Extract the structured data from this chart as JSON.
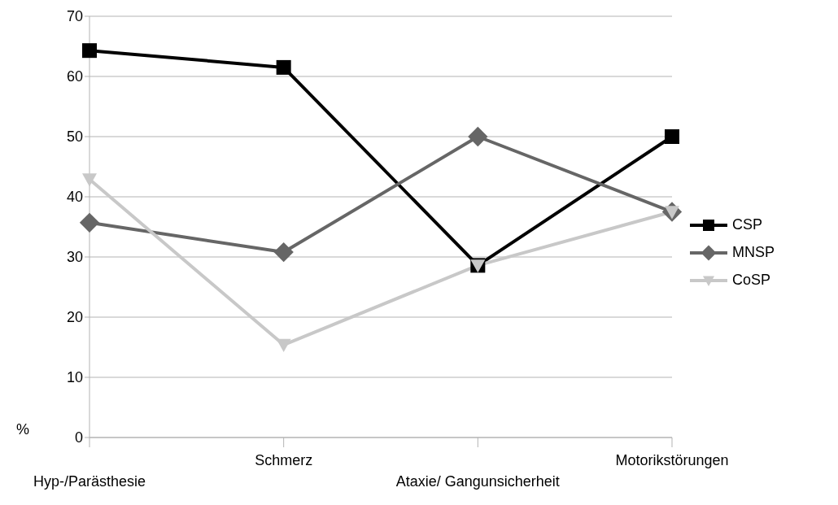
{
  "chart_data": {
    "type": "line",
    "ylabel": "%",
    "categories": [
      "Hyp-/Parästhesie",
      "Schmerz",
      "Ataxie/ Gangunsicherheit",
      "Motorikstörungen"
    ],
    "series": [
      {
        "name": "CSP",
        "color": "#000000",
        "marker": "square",
        "values": [
          64.3,
          61.5,
          28.6,
          50
        ]
      },
      {
        "name": "MNSP",
        "color": "#666666",
        "marker": "diamond",
        "values": [
          35.7,
          30.8,
          50,
          37.5
        ]
      },
      {
        "name": "CoSP",
        "color": "#c8c8c8",
        "marker": "triangle",
        "values": [
          42.9,
          15.4,
          28.6,
          37.5
        ]
      }
    ],
    "ylim": [
      0,
      70
    ],
    "yticks": [
      0,
      10,
      20,
      30,
      40,
      50,
      60,
      70
    ],
    "grid": "y",
    "legend": "right"
  }
}
